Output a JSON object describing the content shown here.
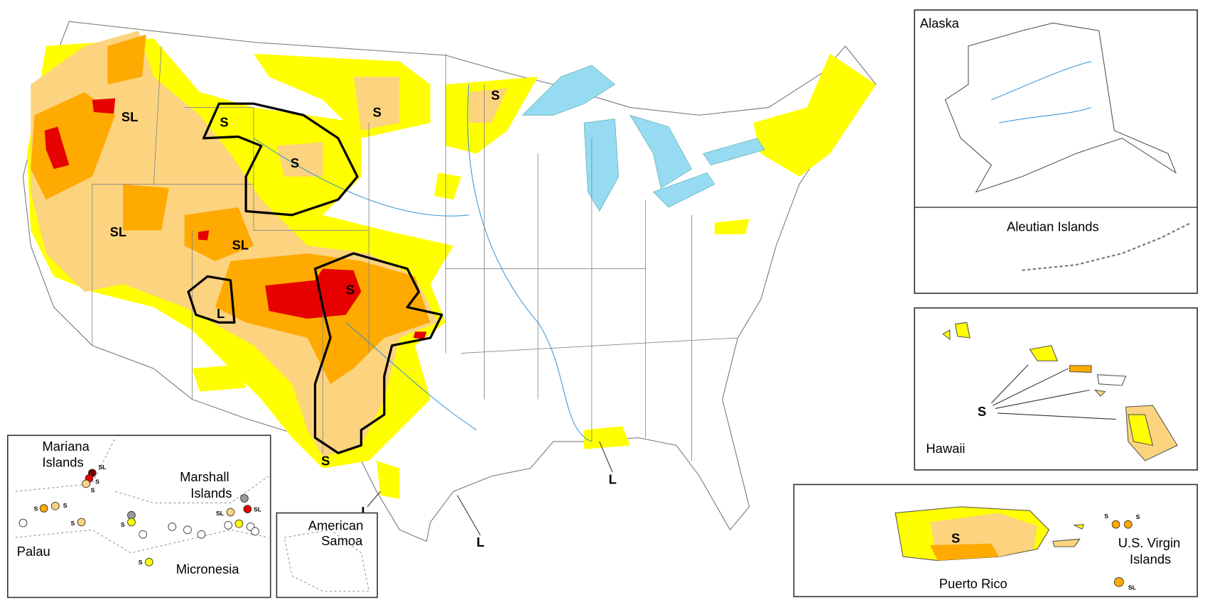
{
  "insets": {
    "alaska": "Alaska",
    "aleutian": "Aleutian Islands",
    "hawaii": "Hawaii",
    "puerto_rico": "Puerto Rico",
    "virgin_islands": [
      "U.S. Virgin",
      "Islands"
    ],
    "mariana": [
      "Mariana",
      "Islands"
    ],
    "marshall": [
      "Marshall",
      "Islands"
    ],
    "palau": "Palau",
    "micronesia": "Micronesia",
    "american_samoa": [
      "American",
      "Samoa"
    ]
  },
  "impact_labels": {
    "conus": [
      "SL",
      "S",
      "S",
      "S",
      "S",
      "SL",
      "SL",
      "S",
      "L",
      "S",
      "L",
      "L",
      "L"
    ],
    "hawaii": "S",
    "puerto_rico": "S",
    "pacific": [
      "SL",
      "S",
      "S",
      "S",
      "S",
      "S",
      "SL",
      "SL",
      "S",
      "S"
    ],
    "virgin_islands": [
      "S",
      "S",
      "SL"
    ]
  }
}
